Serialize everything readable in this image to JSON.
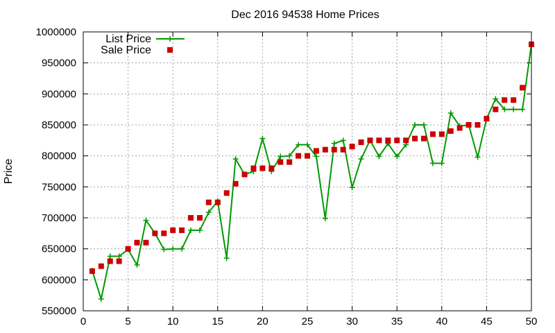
{
  "chart_data": {
    "type": "line",
    "title": "Dec 2016 94538 Home Prices",
    "xlabel": "",
    "ylabel": "Price",
    "xlim": [
      0,
      50
    ],
    "ylim": [
      550000,
      1000000
    ],
    "grid": true,
    "legend_position": "top-left",
    "x_ticks": [
      0,
      5,
      10,
      15,
      20,
      25,
      30,
      35,
      40,
      45,
      50
    ],
    "x_tick_labels": [
      "0",
      "5",
      "10",
      "15",
      "20",
      "25",
      "30",
      "35",
      "40",
      "45",
      "50"
    ],
    "y_ticks": [
      550000,
      600000,
      650000,
      700000,
      750000,
      800000,
      850000,
      900000,
      950000,
      1000000
    ],
    "y_tick_labels": [
      "550000",
      "600000",
      "650000",
      "700000",
      "750000",
      "800000",
      "850000",
      "900000",
      "950000",
      "1000000"
    ],
    "x": [
      1,
      2,
      3,
      4,
      5,
      6,
      7,
      8,
      9,
      10,
      11,
      12,
      13,
      14,
      15,
      16,
      17,
      18,
      19,
      20,
      21,
      22,
      23,
      24,
      25,
      26,
      27,
      28,
      29,
      30,
      31,
      32,
      33,
      34,
      35,
      36,
      37,
      38,
      39,
      40,
      41,
      42,
      43,
      44,
      45,
      46,
      47,
      48,
      49,
      50
    ],
    "series": [
      {
        "name": "List Price",
        "type": "line",
        "color": "#009900",
        "marker": "plus",
        "values": [
          615000,
          569000,
          638000,
          638000,
          649000,
          624000,
          696000,
          675000,
          649000,
          650000,
          650000,
          680000,
          680000,
          709000,
          727000,
          635000,
          795000,
          770000,
          775000,
          828000,
          775000,
          799000,
          800000,
          818000,
          818000,
          799000,
          699000,
          820000,
          825000,
          749000,
          795000,
          825000,
          799000,
          820000,
          799000,
          818000,
          850000,
          850000,
          788000,
          788000,
          869000,
          848000,
          850000,
          798000,
          860000,
          892000,
          875000,
          875000,
          875000,
          980000
        ]
      },
      {
        "name": "Sale Price",
        "type": "scatter",
        "color": "#cc0000",
        "marker": "square",
        "values": [
          614000,
          622000,
          630000,
          630000,
          650000,
          660000,
          660000,
          675000,
          675000,
          680000,
          680000,
          700000,
          700000,
          725000,
          725000,
          740000,
          755000,
          770000,
          780000,
          780000,
          780000,
          790000,
          790000,
          800000,
          800000,
          808000,
          810000,
          810000,
          810000,
          815000,
          822000,
          825000,
          825000,
          825000,
          825000,
          825000,
          828000,
          828000,
          835000,
          835000,
          840000,
          845000,
          850000,
          850000,
          860000,
          875000,
          890000,
          890000,
          910000,
          980000
        ]
      }
    ]
  }
}
